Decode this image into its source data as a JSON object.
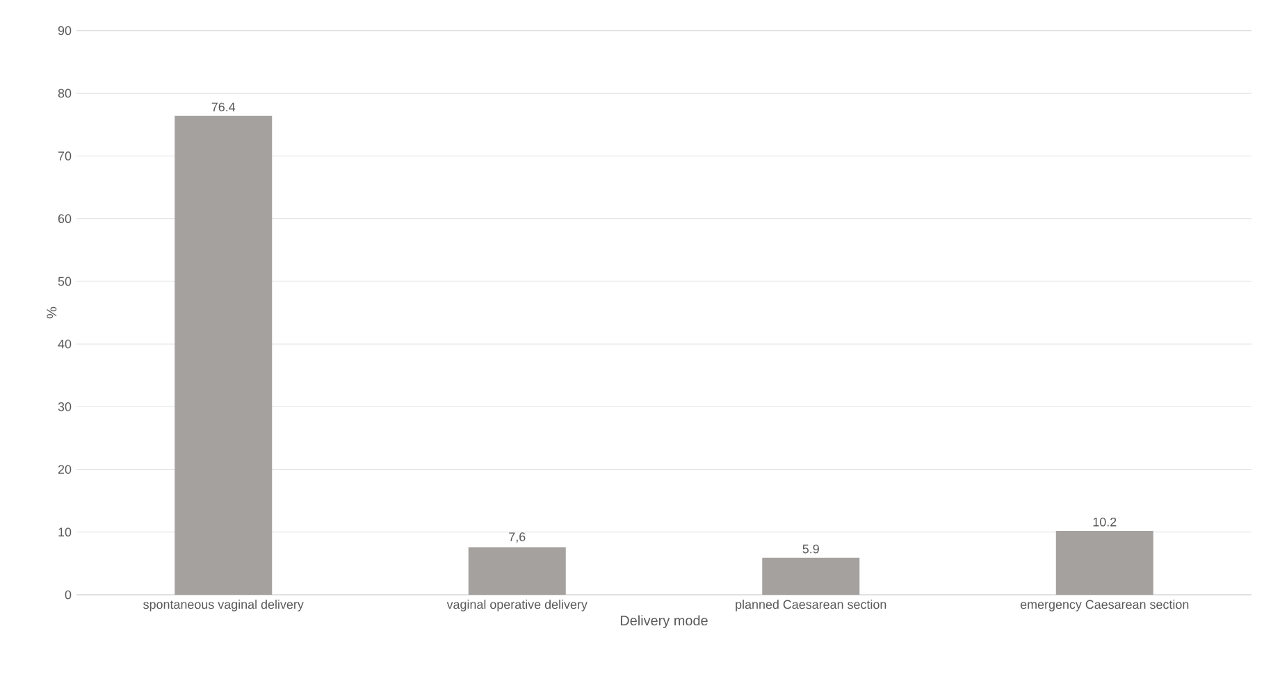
{
  "chart_data": {
    "type": "bar",
    "xlabel": "Delivery mode",
    "ylabel": "%",
    "categories": [
      "spontaneous vaginal delivery",
      "vaginal operative delivery",
      "planned Caesarean section",
      "emergency Caesarean section"
    ],
    "values": [
      76.4,
      7.6,
      5.9,
      10.2
    ],
    "value_labels": [
      "76.4",
      "7,6",
      "5.9",
      "10.2"
    ],
    "color": "#a5a19f",
    "ylim": [
      0,
      90
    ],
    "yticks": [
      0,
      10,
      20,
      30,
      40,
      50,
      60,
      70,
      80,
      90
    ],
    "grid": "y"
  }
}
